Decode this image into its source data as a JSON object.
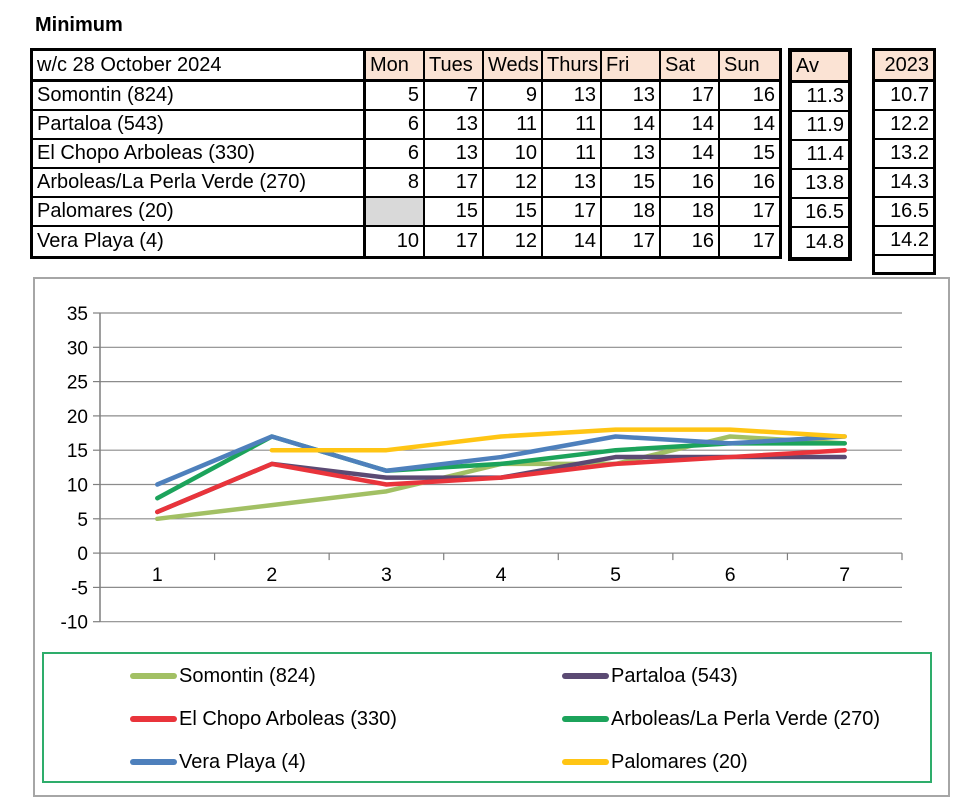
{
  "title": "Minimum",
  "table": {
    "week_label": "w/c 28 October 2024",
    "day_headers": [
      "Mon",
      "Tues",
      "Weds",
      "Thurs",
      "Fri",
      "Sat",
      "Sun"
    ],
    "av_header": "Av",
    "year_header": "2023",
    "rows": [
      {
        "label": "Somontin (824)",
        "values": [
          5,
          7,
          9,
          13,
          13,
          17,
          16
        ],
        "av": "11.3",
        "prev_year": "10.7"
      },
      {
        "label": "Partaloa (543)",
        "values": [
          6,
          13,
          11,
          11,
          14,
          14,
          14
        ],
        "av": "11.9",
        "prev_year": "12.2"
      },
      {
        "label": "El Chopo Arboleas (330)",
        "values": [
          6,
          13,
          10,
          11,
          13,
          14,
          15
        ],
        "av": "11.4",
        "prev_year": "13.2"
      },
      {
        "label": "Arboleas/La Perla Verde (270)",
        "values": [
          8,
          17,
          12,
          13,
          15,
          16,
          16
        ],
        "av": "13.8",
        "prev_year": "14.3"
      },
      {
        "label": "Palomares (20)",
        "values": [
          null,
          15,
          15,
          17,
          18,
          18,
          17
        ],
        "av": "16.5",
        "prev_year": "16.5"
      },
      {
        "label": "Vera Playa (4)",
        "values": [
          10,
          17,
          12,
          14,
          17,
          16,
          17
        ],
        "av": "14.8",
        "prev_year": "14.2"
      }
    ]
  },
  "colors": {
    "header_fill": "#FBE3D4",
    "empty_cell": "#D9D9D9",
    "table_border": "#000000",
    "frame_border": "#A6A6A6",
    "legend_border": "#2EAD6B",
    "gridline": "#8C8C8C",
    "axis": "#7F7F7F"
  },
  "chart_data": {
    "type": "line",
    "x": [
      1,
      2,
      3,
      4,
      5,
      6,
      7
    ],
    "x_tick_labels": [
      "1",
      "2",
      "3",
      "4",
      "5",
      "6",
      "7"
    ],
    "xlabel": "",
    "ylabel": "",
    "title": "",
    "ylim": [
      -10,
      35
    ],
    "yticks": [
      35,
      30,
      25,
      20,
      15,
      10,
      5,
      0,
      -5,
      -10
    ],
    "grid": true,
    "legend_position": "bottom",
    "series": [
      {
        "name": "Somontin (824)",
        "color": "#A2C064",
        "values": [
          5,
          7,
          9,
          13,
          13,
          17,
          16
        ]
      },
      {
        "name": "Partaloa (543)",
        "color": "#5B4A73",
        "values": [
          6,
          13,
          11,
          11,
          14,
          14,
          14
        ]
      },
      {
        "name": "El Chopo Arboleas (330)",
        "color": "#E9343B",
        "values": [
          6,
          13,
          10,
          11,
          13,
          14,
          15
        ]
      },
      {
        "name": "Arboleas/La Perla Verde (270)",
        "color": "#1CA35B",
        "values": [
          8,
          17,
          12,
          13,
          15,
          16,
          16
        ]
      },
      {
        "name": "Vera Playa (4)",
        "color": "#4E80BC",
        "values": [
          10,
          17,
          12,
          14,
          17,
          16,
          17
        ]
      },
      {
        "name": "Palomares (20)",
        "color": "#FFC514",
        "values": [
          null,
          15,
          15,
          17,
          18,
          18,
          17
        ]
      }
    ],
    "legend_order": [
      "Somontin (824)",
      "Partaloa (543)",
      "El Chopo Arboleas (330)",
      "Arboleas/La Perla Verde (270)",
      "Vera Playa (4)",
      "Palomares (20)"
    ]
  }
}
